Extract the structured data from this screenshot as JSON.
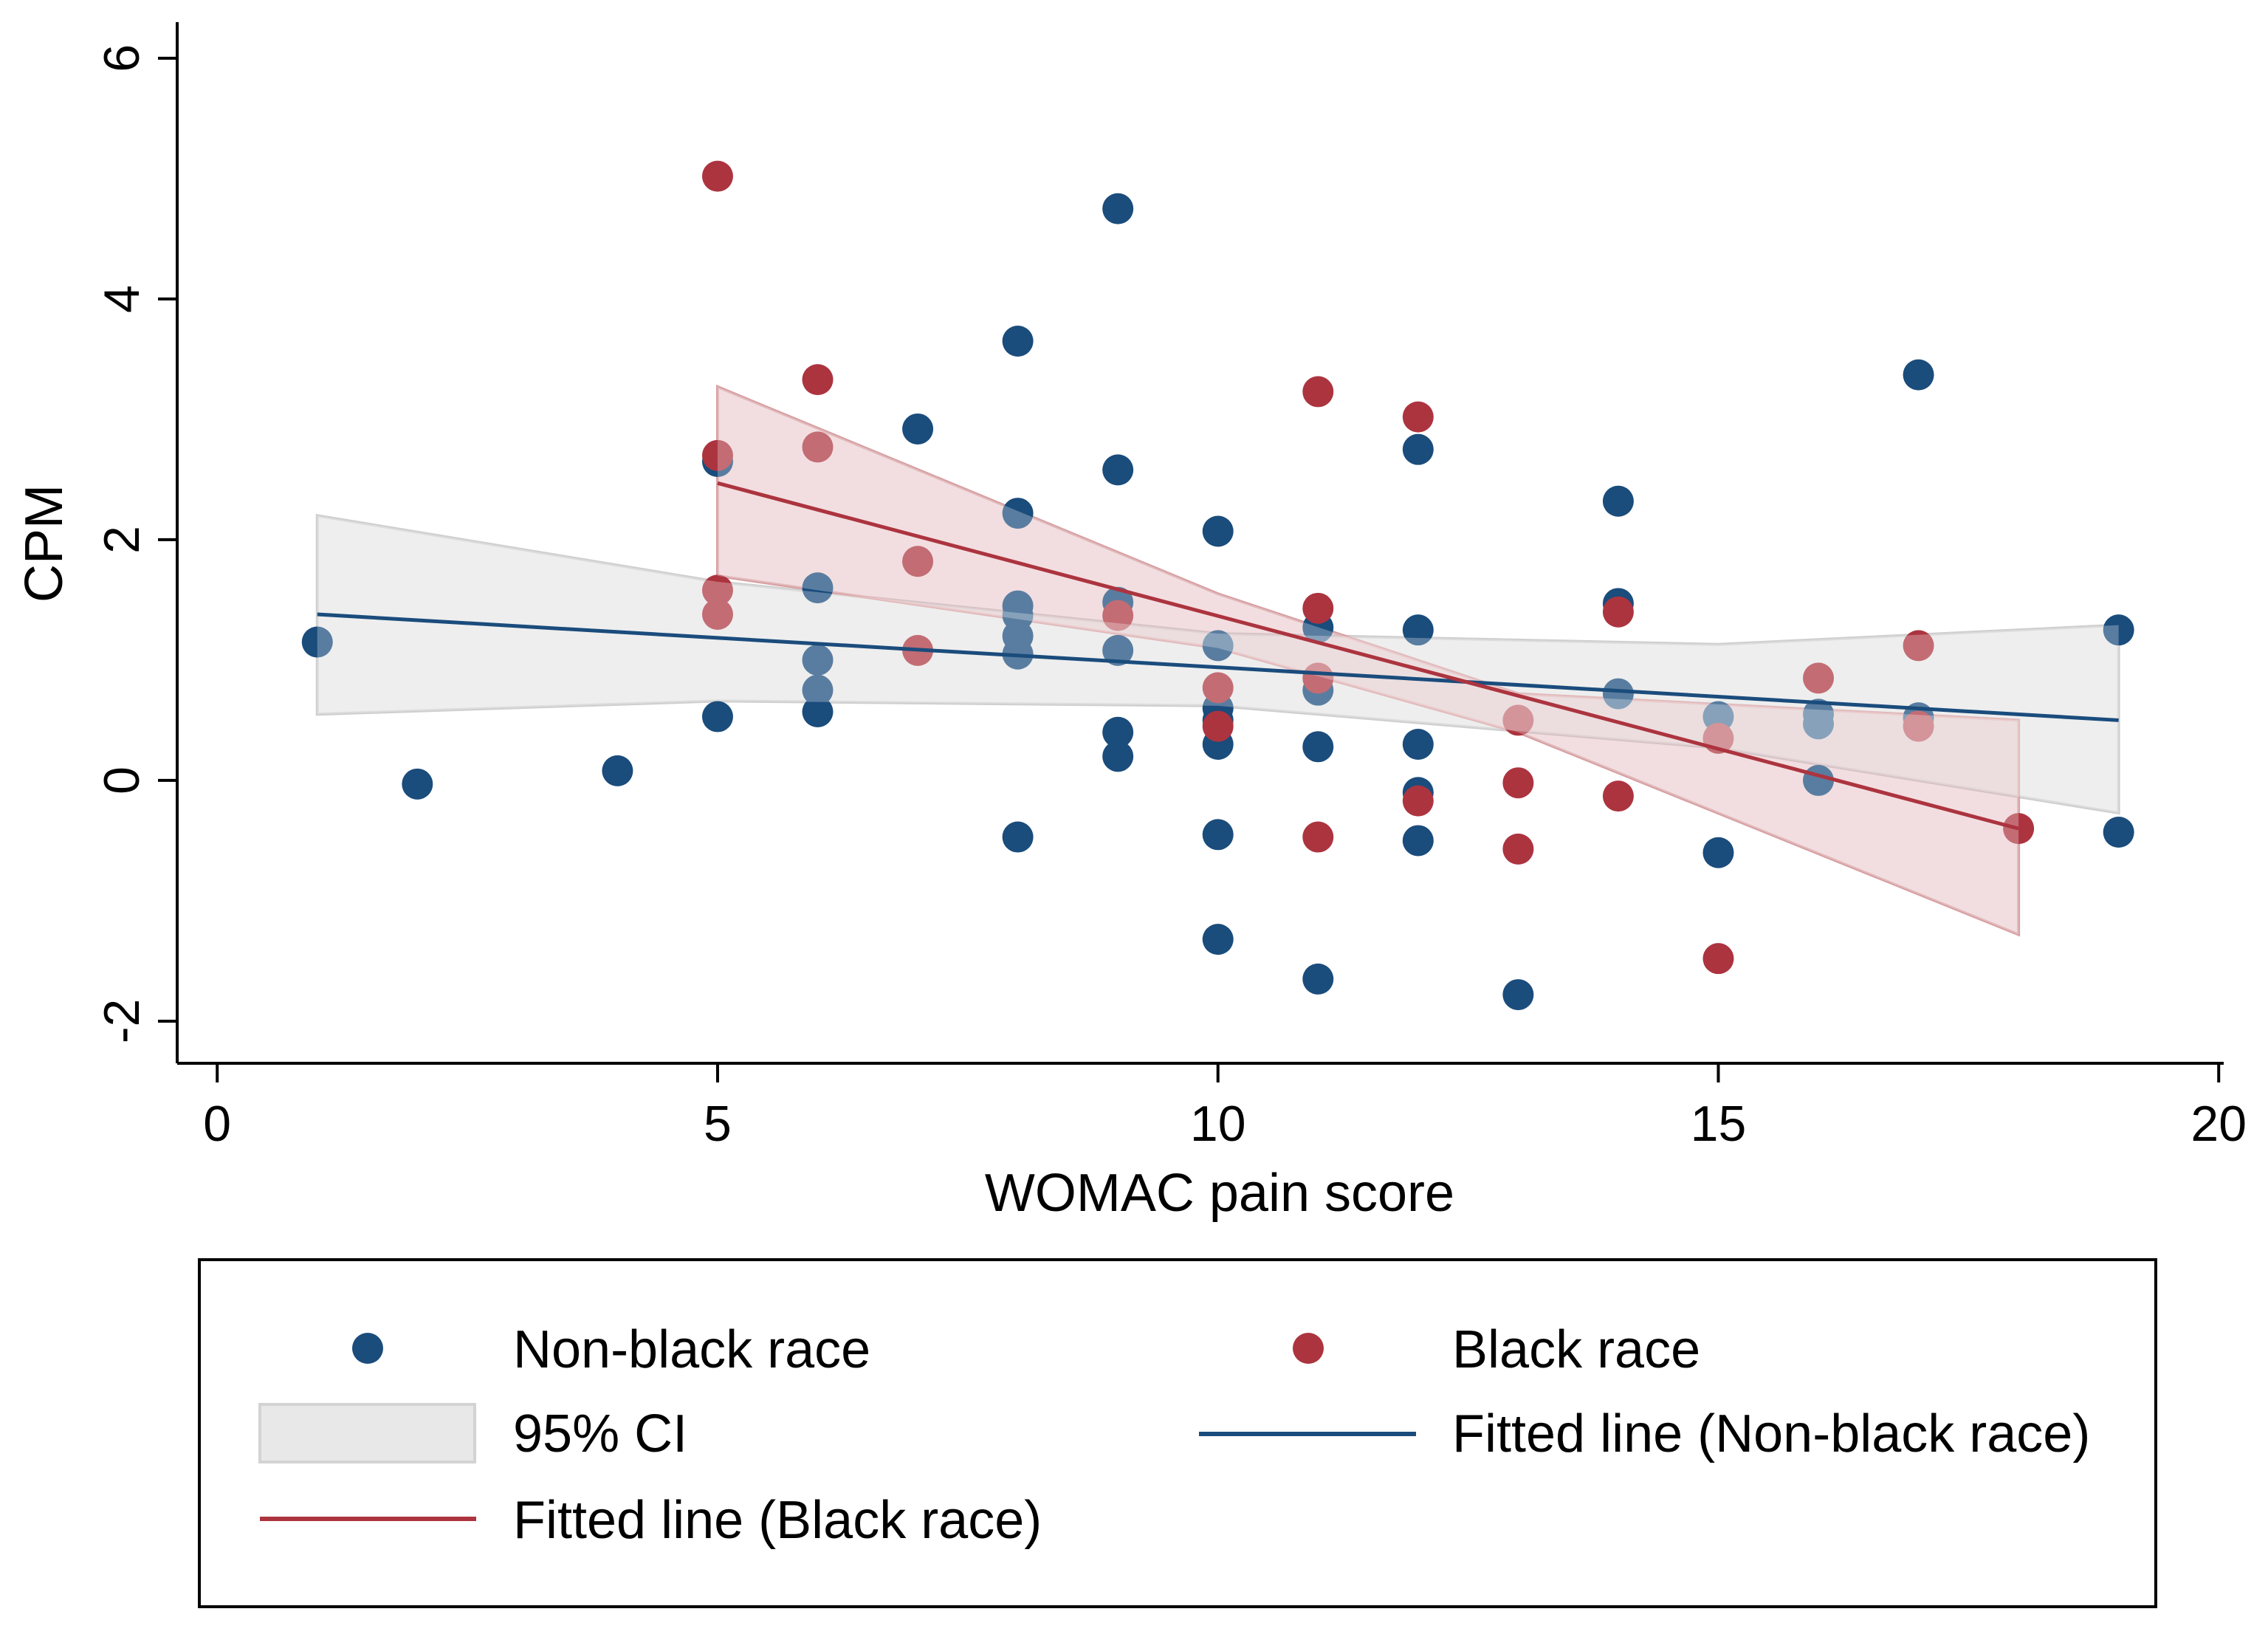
{
  "chart_data": {
    "type": "scatter",
    "xlabel": "WOMAC pain score",
    "ylabel": "CPM",
    "xlim": [
      -0.4,
      20.05
    ],
    "ylim": [
      -2.35,
      6.3
    ],
    "xticks": [
      0,
      5,
      10,
      15,
      20
    ],
    "yticks": [
      -2,
      0,
      2,
      4,
      6
    ],
    "grid": false,
    "legend_position": "bottom",
    "colors": {
      "non_black": "#1a4c7c",
      "black": "#ac343f",
      "ci_gray": "#cccccc",
      "ci_red": "#ac343f"
    },
    "legend": {
      "non_black_points": "Non-black race",
      "black_points": "Black race",
      "ci": "95% CI",
      "fit_non_black": "Fitted line (Non-black race)",
      "fit_black": "Fitted line (Black race)"
    },
    "series": [
      {
        "name": "Non-black race",
        "points": [
          [
            1,
            1.15
          ],
          [
            2,
            -0.03
          ],
          [
            4,
            0.08
          ],
          [
            5,
            2.65
          ],
          [
            5,
            0.53
          ],
          [
            6,
            1.6
          ],
          [
            6,
            1.0
          ],
          [
            6,
            0.75
          ],
          [
            6,
            0.57
          ],
          [
            7,
            2.92
          ],
          [
            8,
            3.65
          ],
          [
            8,
            2.22
          ],
          [
            8,
            1.45
          ],
          [
            8,
            1.37
          ],
          [
            8,
            1.2
          ],
          [
            8,
            1.05
          ],
          [
            8,
            -0.47
          ],
          [
            9,
            4.75
          ],
          [
            9,
            2.58
          ],
          [
            9,
            1.48
          ],
          [
            9,
            1.08
          ],
          [
            9,
            0.4
          ],
          [
            9,
            0.2
          ],
          [
            10,
            2.07
          ],
          [
            10,
            1.12
          ],
          [
            10,
            0.6
          ],
          [
            10,
            0.5
          ],
          [
            10,
            0.3
          ],
          [
            10,
            -0.45
          ],
          [
            10,
            -1.32
          ],
          [
            11,
            1.27
          ],
          [
            11,
            0.75
          ],
          [
            11,
            0.28
          ],
          [
            11,
            -1.65
          ],
          [
            12,
            2.75
          ],
          [
            12,
            1.25
          ],
          [
            12,
            0.3
          ],
          [
            12,
            -0.1
          ],
          [
            12,
            -0.5
          ],
          [
            13,
            -1.78
          ],
          [
            14,
            2.32
          ],
          [
            14,
            1.47
          ],
          [
            14,
            0.72
          ],
          [
            15,
            0.53
          ],
          [
            15,
            -0.6
          ],
          [
            16,
            0.55
          ],
          [
            16,
            0.47
          ],
          [
            16,
            0.0
          ],
          [
            17,
            3.37
          ],
          [
            17,
            0.52
          ],
          [
            19,
            1.25
          ],
          [
            19,
            -0.43
          ]
        ]
      },
      {
        "name": "Black race",
        "points": [
          [
            5,
            5.02
          ],
          [
            5,
            2.7
          ],
          [
            5,
            1.58
          ],
          [
            5,
            1.38
          ],
          [
            6,
            3.33
          ],
          [
            6,
            2.77
          ],
          [
            7,
            1.82
          ],
          [
            7,
            1.08
          ],
          [
            9,
            1.37
          ],
          [
            10,
            0.77
          ],
          [
            10,
            0.45
          ],
          [
            11,
            3.23
          ],
          [
            11,
            1.43
          ],
          [
            11,
            0.85
          ],
          [
            11,
            -0.47
          ],
          [
            12,
            3.02
          ],
          [
            12,
            -0.17
          ],
          [
            13,
            0.5
          ],
          [
            13,
            -0.02
          ],
          [
            13,
            -0.57
          ],
          [
            14,
            1.4
          ],
          [
            14,
            -0.13
          ],
          [
            15,
            0.35
          ],
          [
            15,
            -1.48
          ],
          [
            16,
            0.85
          ],
          [
            17,
            1.12
          ],
          [
            17,
            0.45
          ],
          [
            18,
            -0.4
          ]
        ]
      }
    ],
    "fits": [
      {
        "name": "Fitted line (Non-black race)",
        "x": [
          1,
          19
        ],
        "y": [
          1.38,
          0.5
        ],
        "ci_x": [
          1,
          5,
          10,
          15,
          19
        ],
        "ci_upper": [
          2.2,
          1.65,
          1.22,
          1.13,
          1.29
        ],
        "ci_lower": [
          0.55,
          0.66,
          0.62,
          0.27,
          -0.27
        ]
      },
      {
        "name": "Fitted line (Black race)",
        "x": [
          5,
          18
        ],
        "y": [
          2.47,
          -0.4
        ],
        "ci_x": [
          5,
          10,
          13,
          18
        ],
        "ci_upper": [
          3.27,
          1.55,
          0.72,
          0.5
        ],
        "ci_lower": [
          1.7,
          1.1,
          0.4,
          -1.28
        ]
      }
    ]
  }
}
